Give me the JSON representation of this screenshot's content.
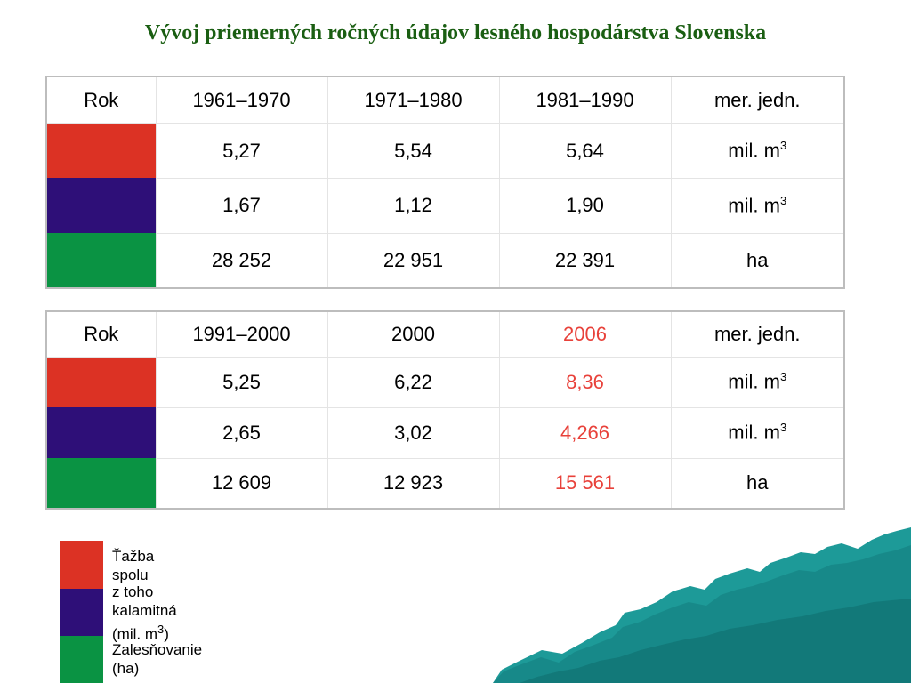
{
  "title": "Vývoj priemerných ročných údajov lesného hospodárstva Slovenska",
  "colors": {
    "red": "#dc3224",
    "purple": "#2e0f78",
    "green": "#0a9343",
    "highlight_text": "#e8413a",
    "teal": "#1d9a98"
  },
  "table1": {
    "header": [
      "Rok",
      "1961–1970",
      "1971–1980",
      "1981–1990",
      "mer. jedn."
    ],
    "rows": [
      {
        "swatch": "red",
        "values": [
          "5,27",
          "5,54",
          "5,64"
        ],
        "unit": "mil. m",
        "unit_sup": "3"
      },
      {
        "swatch": "purple",
        "values": [
          "1,67",
          "1,12",
          "1,90"
        ],
        "unit": "mil. m",
        "unit_sup": "3"
      },
      {
        "swatch": "green",
        "values": [
          "28 252",
          "22 951",
          "22 391"
        ],
        "unit": "ha",
        "unit_sup": ""
      }
    ]
  },
  "table2": {
    "header": [
      "Rok",
      "1991–2000",
      "2000",
      "2006",
      "mer. jedn."
    ],
    "highlight_column": 3,
    "rows": [
      {
        "swatch": "red",
        "values": [
          "5,25",
          "6,22",
          "8,36"
        ],
        "unit": "mil. m",
        "unit_sup": "3"
      },
      {
        "swatch": "purple",
        "values": [
          "2,65",
          "3,02",
          "4,266"
        ],
        "unit": "mil. m",
        "unit_sup": "3"
      },
      {
        "swatch": "green",
        "values": [
          "12 609",
          "12 923",
          "15 561"
        ],
        "unit": "ha",
        "unit_sup": ""
      }
    ]
  },
  "legend": [
    {
      "swatch": "red",
      "label": "Ťažba spolu"
    },
    {
      "swatch": "purple",
      "label": "z toho kalamitná",
      "label2": "(mil. m",
      "label2_sup": "3",
      "label2_end": ")"
    },
    {
      "swatch": "green",
      "label": "Zalesňovanie (ha)"
    }
  ]
}
